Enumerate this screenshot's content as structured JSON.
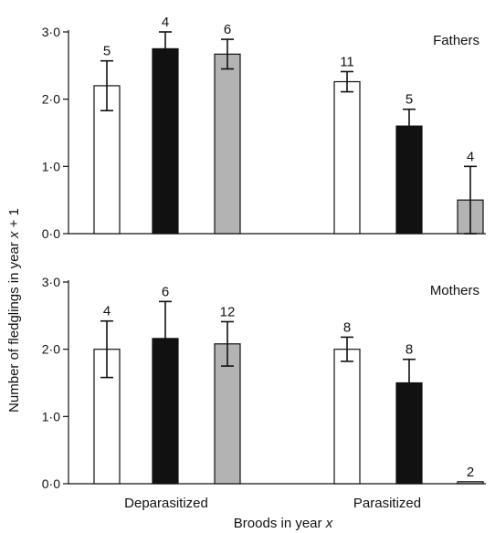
{
  "chart_data": [
    {
      "type": "bar",
      "panel_label": "Fathers",
      "groups": [
        "Deparasitized",
        "Parasitized"
      ],
      "bar_colors": [
        "#ffffff",
        "#111111",
        "#b3b3b3"
      ],
      "ylim": [
        0,
        3
      ],
      "yticks": [
        "0·0",
        "1·0",
        "2·0",
        "3·0"
      ],
      "bars": [
        {
          "group": "Deparasitized",
          "value": 2.2,
          "error": 0.37,
          "n": "5"
        },
        {
          "group": "Deparasitized",
          "value": 2.75,
          "error": 0.25,
          "n": "4"
        },
        {
          "group": "Deparasitized",
          "value": 2.67,
          "error": 0.22,
          "n": "6"
        },
        {
          "group": "Parasitized",
          "value": 2.26,
          "error": 0.15,
          "n": "11"
        },
        {
          "group": "Parasitized",
          "value": 1.6,
          "error": 0.25,
          "n": "5"
        },
        {
          "group": "Parasitized",
          "value": 0.5,
          "error": 0.5,
          "n": "4"
        }
      ]
    },
    {
      "type": "bar",
      "panel_label": "Mothers",
      "groups": [
        "Deparasitized",
        "Parasitized"
      ],
      "bar_colors": [
        "#ffffff",
        "#111111",
        "#b3b3b3"
      ],
      "ylim": [
        0,
        3
      ],
      "yticks": [
        "0·0",
        "1·0",
        "2·0",
        "3·0"
      ],
      "bars": [
        {
          "group": "Deparasitized",
          "value": 2.0,
          "error": 0.42,
          "n": "4"
        },
        {
          "group": "Deparasitized",
          "value": 2.16,
          "error": 0.55,
          "n": "6"
        },
        {
          "group": "Deparasitized",
          "value": 2.08,
          "error": 0.33,
          "n": "12"
        },
        {
          "group": "Parasitized",
          "value": 2.0,
          "error": 0.18,
          "n": "8"
        },
        {
          "group": "Parasitized",
          "value": 1.5,
          "error": 0.35,
          "n": "8"
        },
        {
          "group": "Parasitized",
          "value": 0.03,
          "error": 0,
          "n": "2"
        }
      ]
    }
  ],
  "axes": {
    "ylabel": "Number of fledglings in year x + 1",
    "xlabel": "Broods in year x",
    "x_categories": [
      "Deparasitized",
      "Parasitized"
    ]
  }
}
